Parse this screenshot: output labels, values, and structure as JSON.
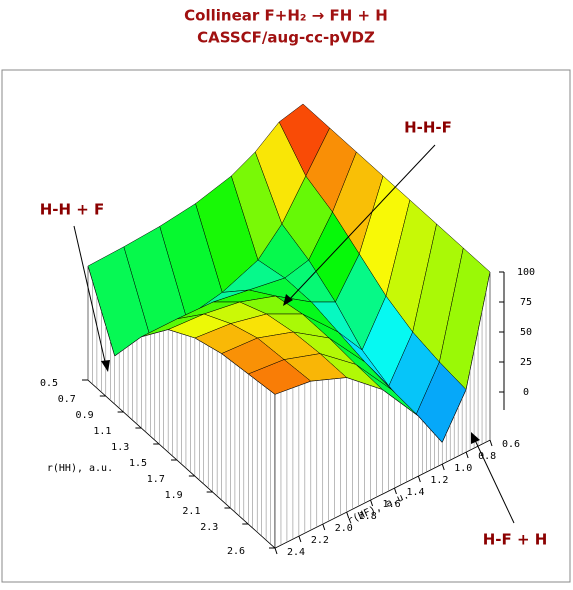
{
  "chart_data": {
    "type": "surface",
    "title": "Collinear F+H₂ → FH + H",
    "subtitle": "CASSCF/aug-cc-pVDZ",
    "xlabel": "r(HH), a.u.",
    "ylabel": "r(HF), a.u.",
    "x": [
      0.5,
      0.8,
      1.1,
      1.4,
      1.7,
      2.0,
      2.3,
      2.6
    ],
    "y": [
      0.6,
      0.8,
      1.0,
      1.2,
      1.5,
      1.8,
      2.1,
      2.4
    ],
    "z": [
      [
        100,
        95,
        80,
        70,
        62,
        58,
        56,
        55
      ],
      [
        100,
        70,
        40,
        20,
        8,
        2,
        0,
        0
      ],
      [
        100,
        60,
        30,
        25,
        30,
        35,
        36,
        36
      ],
      [
        100,
        45,
        15,
        25,
        45,
        55,
        60,
        62
      ],
      [
        100,
        30,
        -5,
        20,
        50,
        65,
        72,
        75
      ],
      [
        100,
        20,
        -15,
        15,
        50,
        70,
        80,
        82
      ],
      [
        100,
        15,
        -20,
        12,
        48,
        72,
        82,
        85
      ],
      [
        100,
        12,
        -22,
        10,
        47,
        72,
        84,
        88
      ]
    ],
    "xlim": [
      0.5,
      2.6
    ],
    "ylim": [
      0.6,
      2.4
    ],
    "zlim": [
      -40,
      100
    ],
    "xticks": [
      0.5,
      0.7,
      0.9,
      1.1,
      1.3,
      1.5,
      1.7,
      1.9,
      2.1,
      2.3,
      2.6
    ],
    "yticks": [
      0.6,
      0.8,
      {
        "value": 1,
        "label": "1.0"
      },
      1.2,
      1.4,
      1.6,
      1.8,
      {
        "value": 2,
        "label": "2.0"
      },
      2.2,
      2.4
    ],
    "zticks": [
      0,
      25,
      50,
      75,
      100
    ],
    "annotations": [
      "H-H-F",
      "H-H + F",
      "H-F + H"
    ]
  }
}
